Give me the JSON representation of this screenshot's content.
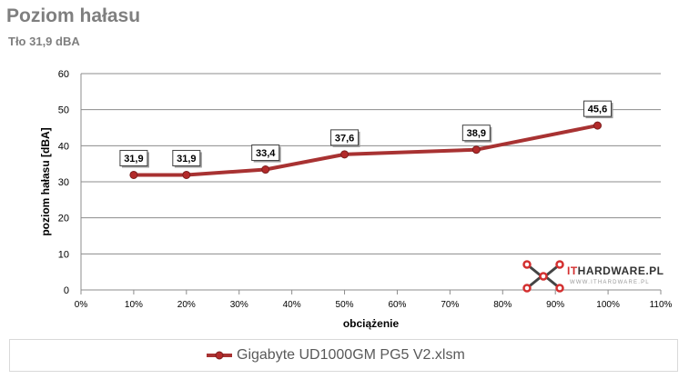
{
  "header": {
    "title": "Poziom hałasu",
    "subtitle": "Tło 31,9 dBA"
  },
  "chart_data": {
    "type": "line",
    "x": [
      10,
      20,
      35,
      50,
      75,
      98
    ],
    "series": [
      {
        "name": "Gigabyte UD1000GM PG5 V2.xlsm",
        "values": [
          31.9,
          31.9,
          33.4,
          37.6,
          38.9,
          45.6
        ],
        "labels": [
          "31,9",
          "31,9",
          "33,4",
          "37,6",
          "38,9",
          "45,6"
        ]
      }
    ],
    "xlabel": "obciążenie",
    "ylabel": "poziom hałasu [dBA]",
    "xlim": [
      0,
      110
    ],
    "ylim": [
      0,
      60
    ],
    "xticks": [
      "0%",
      "10%",
      "20%",
      "30%",
      "40%",
      "50%",
      "60%",
      "70%",
      "80%",
      "90%",
      "100%",
      "110%"
    ],
    "yticks": [
      "0",
      "10",
      "20",
      "30",
      "40",
      "50",
      "60"
    ],
    "grid": true,
    "legend_position": "bottom",
    "line_color": "#a83232",
    "marker_color": "#b32a2a"
  },
  "legend": {
    "label": "Gigabyte UD1000GM PG5 V2.xlsm"
  },
  "watermark": {
    "brand_prefix": "IT",
    "brand_rest": "HARDWARE.PL",
    "url": "WWW.ITHARDWARE.PL"
  }
}
